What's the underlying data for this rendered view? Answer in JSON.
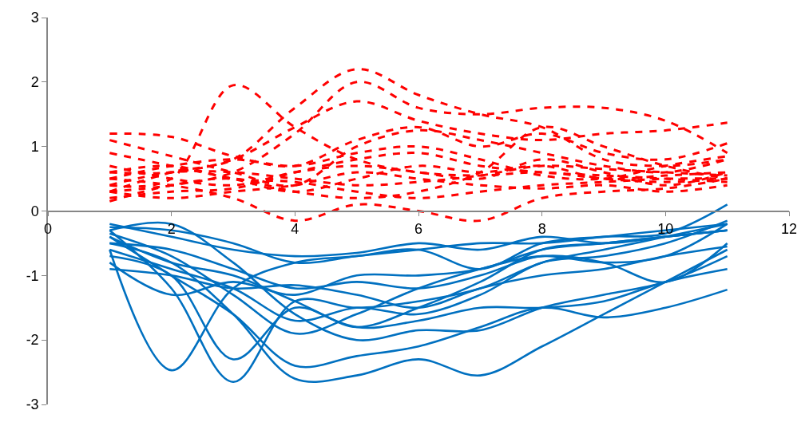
{
  "chart_data": {
    "type": "line",
    "x": [
      1,
      2,
      3,
      4,
      5,
      6,
      7,
      8,
      9,
      10,
      11
    ],
    "xlim": [
      0,
      12
    ],
    "xticks": [
      0,
      2,
      4,
      6,
      8,
      10,
      12
    ],
    "ylim": [
      -3,
      3
    ],
    "yticks": [
      -3,
      -2,
      -1,
      0,
      1,
      2,
      3
    ],
    "series": [
      {
        "color": "#ff0000",
        "line_style": "dashed",
        "values": [
          0.4,
          0.5,
          1.95,
          1.3,
          0.8,
          0.6,
          0.55,
          0.6,
          0.5,
          0.45,
          0.5
        ]
      },
      {
        "color": "#ff0000",
        "line_style": "dashed",
        "values": [
          0.3,
          0.6,
          0.8,
          1.6,
          2.2,
          1.8,
          1.5,
          1.3,
          0.8,
          0.7,
          0.8
        ]
      },
      {
        "color": "#ff0000",
        "line_style": "dashed",
        "values": [
          0.3,
          0.4,
          0.6,
          1.2,
          2.0,
          1.6,
          1.5,
          1.6,
          1.6,
          1.4,
          0.9
        ]
      },
      {
        "color": "#ff0000",
        "line_style": "dashed",
        "values": [
          0.6,
          0.6,
          0.8,
          1.3,
          1.7,
          1.4,
          1.2,
          1.1,
          1.2,
          1.25,
          1.37
        ]
      },
      {
        "color": "#ff0000",
        "line_style": "dashed",
        "values": [
          1.2,
          1.15,
          0.85,
          0.7,
          1.1,
          1.3,
          1.0,
          1.2,
          0.9,
          0.8,
          1.05
        ]
      },
      {
        "color": "#ff0000",
        "line_style": "dashed",
        "values": [
          1.1,
          0.85,
          0.6,
          0.4,
          1.0,
          1.25,
          1.1,
          0.9,
          0.7,
          0.6,
          0.8
        ]
      },
      {
        "color": "#ff0000",
        "line_style": "dashed",
        "values": [
          0.5,
          0.4,
          0.2,
          -0.15,
          0.1,
          0.0,
          -0.15,
          0.2,
          0.3,
          0.35,
          0.5
        ]
      },
      {
        "color": "#ff0000",
        "line_style": "dashed",
        "values": [
          0.9,
          0.7,
          0.5,
          0.3,
          0.5,
          0.7,
          0.6,
          0.7,
          0.5,
          0.55,
          0.6
        ]
      },
      {
        "color": "#ff0000",
        "line_style": "dashed",
        "values": [
          0.2,
          0.3,
          0.35,
          0.6,
          0.8,
          0.9,
          0.7,
          0.6,
          0.55,
          0.5,
          0.45
        ]
      },
      {
        "color": "#ff0000",
        "line_style": "dashed",
        "values": [
          0.4,
          0.6,
          0.6,
          0.5,
          0.4,
          0.45,
          0.55,
          0.7,
          0.65,
          0.6,
          0.55
        ]
      },
      {
        "color": "#ff0000",
        "line_style": "dashed",
        "values": [
          0.3,
          0.2,
          0.3,
          0.4,
          0.6,
          0.5,
          0.4,
          0.35,
          0.4,
          0.3,
          0.4
        ]
      },
      {
        "color": "#ff0000",
        "line_style": "dashed",
        "values": [
          0.7,
          0.5,
          0.4,
          0.6,
          0.7,
          0.6,
          0.5,
          0.8,
          0.6,
          0.4,
          0.6
        ]
      },
      {
        "color": "#ff0000",
        "line_style": "dashed",
        "values": [
          0.15,
          0.4,
          0.5,
          0.3,
          0.2,
          0.3,
          0.6,
          1.3,
          1.0,
          0.7,
          0.5
        ]
      },
      {
        "color": "#ff0000",
        "line_style": "dashed",
        "values": [
          0.5,
          0.7,
          0.8,
          0.7,
          0.9,
          1.0,
          0.8,
          0.55,
          0.5,
          0.7,
          0.85
        ]
      },
      {
        "color": "#ff0000",
        "line_style": "dashed",
        "values": [
          0.6,
          0.7,
          0.5,
          0.45,
          0.3,
          0.2,
          0.3,
          0.4,
          0.45,
          0.5,
          0.5
        ]
      },
      {
        "color": "#0070c0",
        "line_style": "solid",
        "values": [
          -0.6,
          -2.47,
          -1.2,
          -0.8,
          -0.7,
          -0.6,
          -0.5,
          -0.5,
          -0.4,
          -0.3,
          -0.2
        ]
      },
      {
        "color": "#0070c0",
        "line_style": "solid",
        "values": [
          -0.3,
          -1.2,
          -2.65,
          -1.4,
          -1.5,
          -1.4,
          -1.2,
          -0.8,
          -0.6,
          -0.4,
          -0.2
        ]
      },
      {
        "color": "#0070c0",
        "line_style": "solid",
        "values": [
          -0.5,
          -0.8,
          -1.6,
          -2.6,
          -2.55,
          -2.3,
          -2.55,
          -2.1,
          -1.6,
          -1.1,
          -0.6
        ]
      },
      {
        "color": "#0070c0",
        "line_style": "solid",
        "values": [
          -0.7,
          -1.0,
          -2.3,
          -1.5,
          -1.8,
          -1.5,
          -1.1,
          -0.6,
          -0.5,
          -0.4,
          -0.3
        ]
      },
      {
        "color": "#0070c0",
        "line_style": "solid",
        "values": [
          -0.3,
          -0.2,
          -0.8,
          -1.6,
          -2.0,
          -1.85,
          -1.85,
          -1.5,
          -1.3,
          -1.1,
          -0.7
        ]
      },
      {
        "color": "#0070c0",
        "line_style": "solid",
        "values": [
          -0.4,
          -1.0,
          -1.6,
          -2.4,
          -2.25,
          -2.1,
          -1.8,
          -1.5,
          -1.65,
          -1.5,
          -1.22
        ]
      },
      {
        "color": "#0070c0",
        "line_style": "solid",
        "values": [
          -0.2,
          -0.4,
          -0.6,
          -0.7,
          -0.65,
          -0.5,
          -0.6,
          -0.4,
          -0.5,
          -0.4,
          -0.3
        ]
      },
      {
        "color": "#0070c0",
        "line_style": "solid",
        "values": [
          -0.25,
          -0.3,
          -0.5,
          -0.8,
          -0.7,
          -0.6,
          -0.9,
          -0.5,
          -0.4,
          -0.35,
          0.1
        ]
      },
      {
        "color": "#0070c0",
        "line_style": "solid",
        "values": [
          -0.5,
          -0.6,
          -0.9,
          -1.2,
          -1.1,
          -1.2,
          -1.0,
          -0.7,
          -0.8,
          -1.1,
          -0.5
        ]
      },
      {
        "color": "#0070c0",
        "line_style": "solid",
        "values": [
          -0.8,
          -1.3,
          -1.1,
          -1.3,
          -1.0,
          -1.0,
          -0.9,
          -0.6,
          -0.5,
          -0.4,
          -0.3
        ]
      },
      {
        "color": "#0070c0",
        "line_style": "solid",
        "values": [
          -0.35,
          -0.7,
          -1.3,
          -1.9,
          -1.6,
          -1.2,
          -0.9,
          -0.7,
          -0.8,
          -0.7,
          -0.2
        ]
      },
      {
        "color": "#0070c0",
        "line_style": "solid",
        "values": [
          -0.6,
          -0.9,
          -1.2,
          -1.7,
          -1.5,
          -1.6,
          -1.3,
          -0.8,
          -0.7,
          -0.5,
          -0.15
        ]
      },
      {
        "color": "#0070c0",
        "line_style": "solid",
        "values": [
          -0.4,
          -0.8,
          -1.0,
          -1.4,
          -1.8,
          -1.7,
          -1.5,
          -1.5,
          -1.4,
          -1.1,
          -0.9
        ]
      },
      {
        "color": "#0070c0",
        "line_style": "solid",
        "values": [
          -0.9,
          -1.0,
          -1.2,
          -1.15,
          -1.3,
          -1.5,
          -1.2,
          -1.0,
          -0.9,
          -0.7,
          -0.55
        ]
      }
    ]
  }
}
